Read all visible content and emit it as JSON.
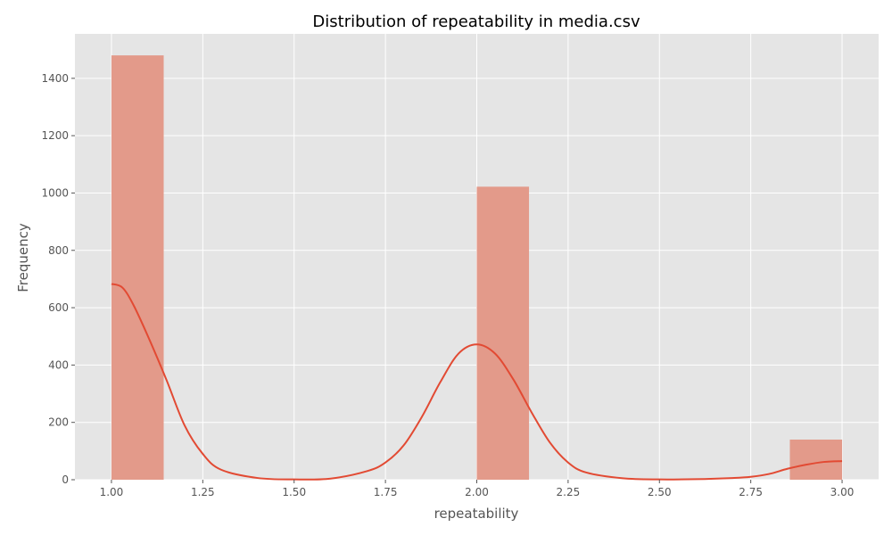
{
  "chart_data": {
    "type": "bar",
    "title": "Distribution of repeatability in media.csv",
    "xlabel": "repeatability",
    "ylabel": "Frequency",
    "xlim": [
      0.9,
      3.1
    ],
    "ylim": [
      0,
      1555
    ],
    "x_ticks": [
      "1.00",
      "1.25",
      "1.50",
      "1.75",
      "2.00",
      "2.25",
      "2.50",
      "2.75",
      "3.00"
    ],
    "y_ticks": [
      "0",
      "200",
      "400",
      "600",
      "800",
      "1000",
      "1200",
      "1400"
    ],
    "grid": true,
    "bars": [
      {
        "x0": 1.0,
        "x1": 1.143,
        "value": 1480
      },
      {
        "x0": 2.0,
        "x1": 2.143,
        "value": 1022
      },
      {
        "x0": 2.857,
        "x1": 3.0,
        "value": 140
      }
    ],
    "kde": {
      "x": [
        1.0,
        1.03,
        1.06,
        1.1,
        1.15,
        1.2,
        1.25,
        1.3,
        1.4,
        1.5,
        1.6,
        1.7,
        1.75,
        1.8,
        1.85,
        1.9,
        1.95,
        2.0,
        2.05,
        2.1,
        2.15,
        2.2,
        2.25,
        2.3,
        2.4,
        2.5,
        2.6,
        2.7,
        2.75,
        2.8,
        2.85,
        2.9,
        2.95,
        3.0
      ],
      "y": [
        683,
        670,
        610,
        500,
        350,
        190,
        90,
        35,
        6,
        1,
        4,
        30,
        60,
        120,
        220,
        340,
        440,
        472,
        440,
        350,
        235,
        130,
        60,
        25,
        5,
        1,
        2,
        6,
        10,
        20,
        38,
        52,
        62,
        65
      ]
    },
    "colors": {
      "background": "#E5E5E5",
      "grid": "#FFFFFF",
      "bar": "#E39A8A",
      "line": "#E24A33"
    }
  }
}
